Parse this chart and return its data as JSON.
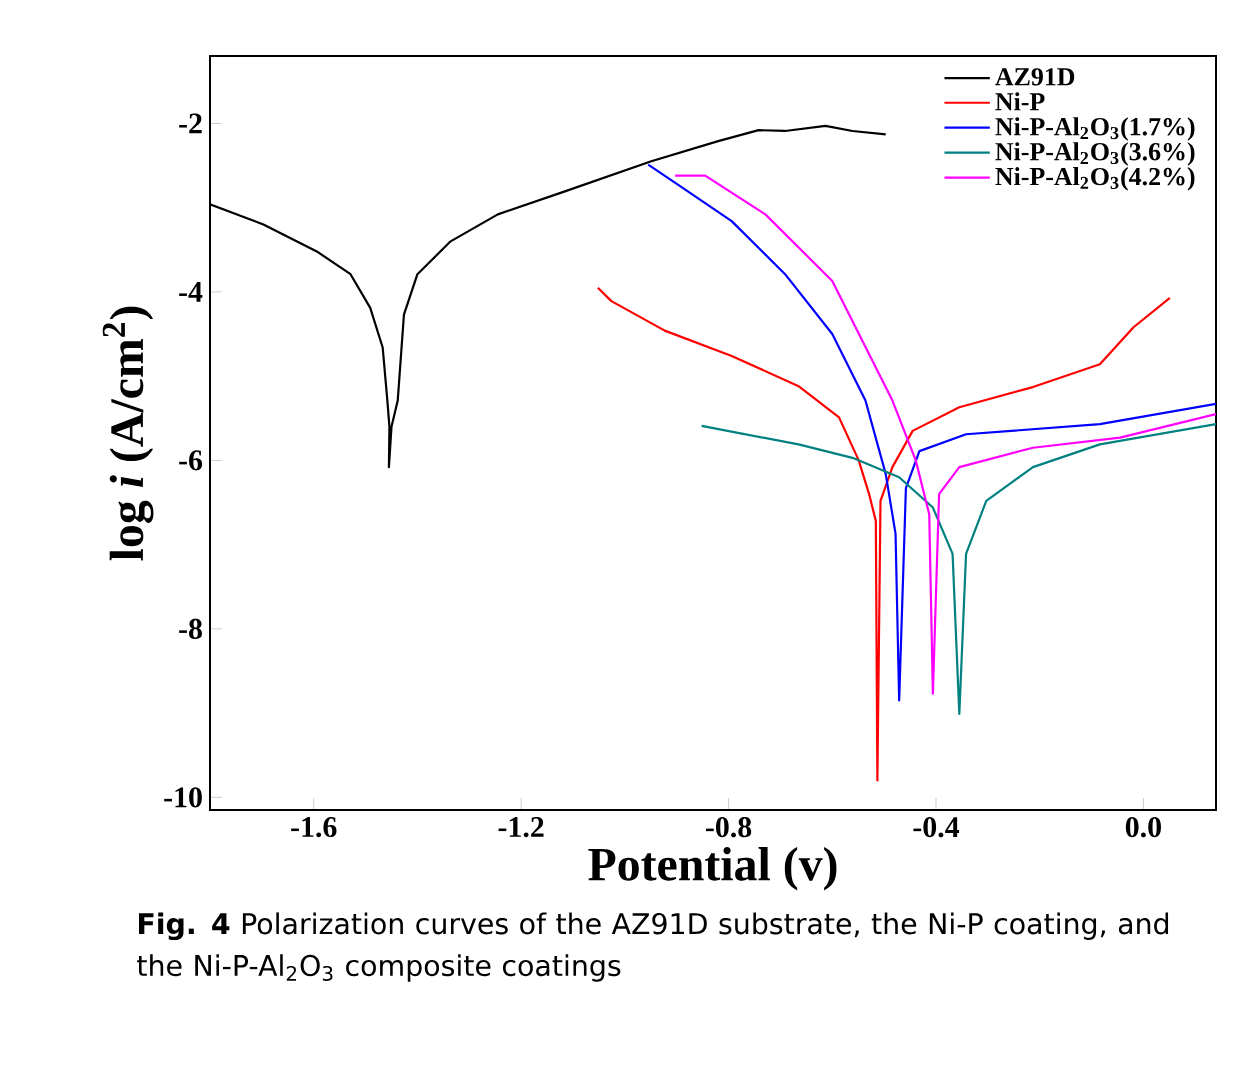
{
  "chart_data": {
    "type": "line",
    "xlabel": "Potential (v)",
    "ylabel": "log *i* (A/cm$^{2}$)",
    "xlim": [
      -1.8,
      0.14
    ],
    "ylim": [
      -10.15,
      -1.2
    ],
    "xticks": [
      -1.6,
      -1.2,
      -0.8,
      -0.4,
      {
        "value": 0,
        "label": "0.0"
      }
    ],
    "yticks": [
      -2,
      -4,
      -6,
      -8,
      -10
    ],
    "legend": "top right",
    "grid": false,
    "marker": "none",
    "line_style": "solid",
    "annotations": [
      "**Fig. 4** Polarization curves of the AZ91D substrate, the Ni-P coating, and the Ni-P-Al$_{2}$O$_{3}$ composite coatings"
    ],
    "series": [
      {
        "name": "AZ91D",
        "color": "#000000",
        "x": [
          -1.8,
          -1.697,
          -1.594,
          -1.529,
          -1.491,
          -1.467,
          -1.458,
          -1.454,
          -1.455,
          -1.45,
          -1.438,
          -1.426,
          -1.4,
          -1.336,
          -1.245,
          -1.117,
          -0.949,
          -0.82,
          -0.742,
          -0.691,
          -0.613,
          -0.561,
          -0.497
        ],
        "values": [
          -2.96,
          -3.2,
          -3.52,
          -3.79,
          -4.19,
          -4.66,
          -5.29,
          -5.6,
          -6.08,
          -5.6,
          -5.29,
          -4.27,
          -3.79,
          -3.4,
          -3.08,
          -2.81,
          -2.45,
          -2.21,
          -2.08,
          -2.09,
          -2.03,
          -2.09,
          -2.13
        ]
      },
      {
        "name": "Ni-P",
        "color": "#ff0000",
        "x": [
          -1.052,
          -1.026,
          -0.923,
          -0.794,
          -0.665,
          -0.587,
          -0.549,
          -0.529,
          -0.516,
          -0.513,
          -0.507,
          -0.484,
          -0.445,
          -0.355,
          -0.213,
          -0.084,
          -0.019,
          0.051
        ],
        "values": [
          -3.95,
          -4.11,
          -4.46,
          -4.76,
          -5.12,
          -5.49,
          -6.0,
          -6.4,
          -6.72,
          -9.8,
          -6.48,
          -6.08,
          -5.65,
          -5.37,
          -5.13,
          -4.86,
          -4.42,
          -4.07
        ]
      },
      {
        "name": "Ni-P-Al$_{2}$O$_{3}$(1.7%)",
        "color": "#0000ff",
        "x": [
          -0.955,
          -0.897,
          -0.794,
          -0.691,
          -0.6,
          -0.536,
          -0.497,
          -0.478,
          -0.471,
          -0.458,
          -0.432,
          -0.342,
          -0.084,
          0.14
        ],
        "values": [
          -2.49,
          -2.73,
          -3.16,
          -3.79,
          -4.5,
          -5.29,
          -6.16,
          -6.87,
          -8.85,
          -6.33,
          -5.89,
          -5.69,
          -5.57,
          -5.33
        ]
      },
      {
        "name": "Ni-P-Al$_{2}$O$_{3}$(3.6%)",
        "color": "#008080",
        "x": [
          -0.852,
          -0.665,
          -0.561,
          -0.471,
          -0.406,
          -0.368,
          -0.355,
          -0.342,
          -0.303,
          -0.213,
          -0.084,
          0.14
        ],
        "values": [
          -5.59,
          -5.81,
          -5.97,
          -6.2,
          -6.56,
          -7.11,
          -9.01,
          -7.11,
          -6.48,
          -6.08,
          -5.81,
          -5.57
        ]
      },
      {
        "name": "Ni-P-Al$_{2}$O$_{3}$(4.2%)",
        "color": "#ff00ff",
        "x": [
          -0.903,
          -0.845,
          -0.729,
          -0.6,
          -0.484,
          -0.439,
          -0.413,
          -0.406,
          -0.394,
          -0.355,
          -0.213,
          -0.045,
          0.14
        ],
        "values": [
          -2.62,
          -2.62,
          -3.08,
          -3.87,
          -5.29,
          -6.0,
          -6.64,
          -8.77,
          -6.4,
          -6.08,
          -5.85,
          -5.73,
          -5.45
        ]
      }
    ]
  }
}
